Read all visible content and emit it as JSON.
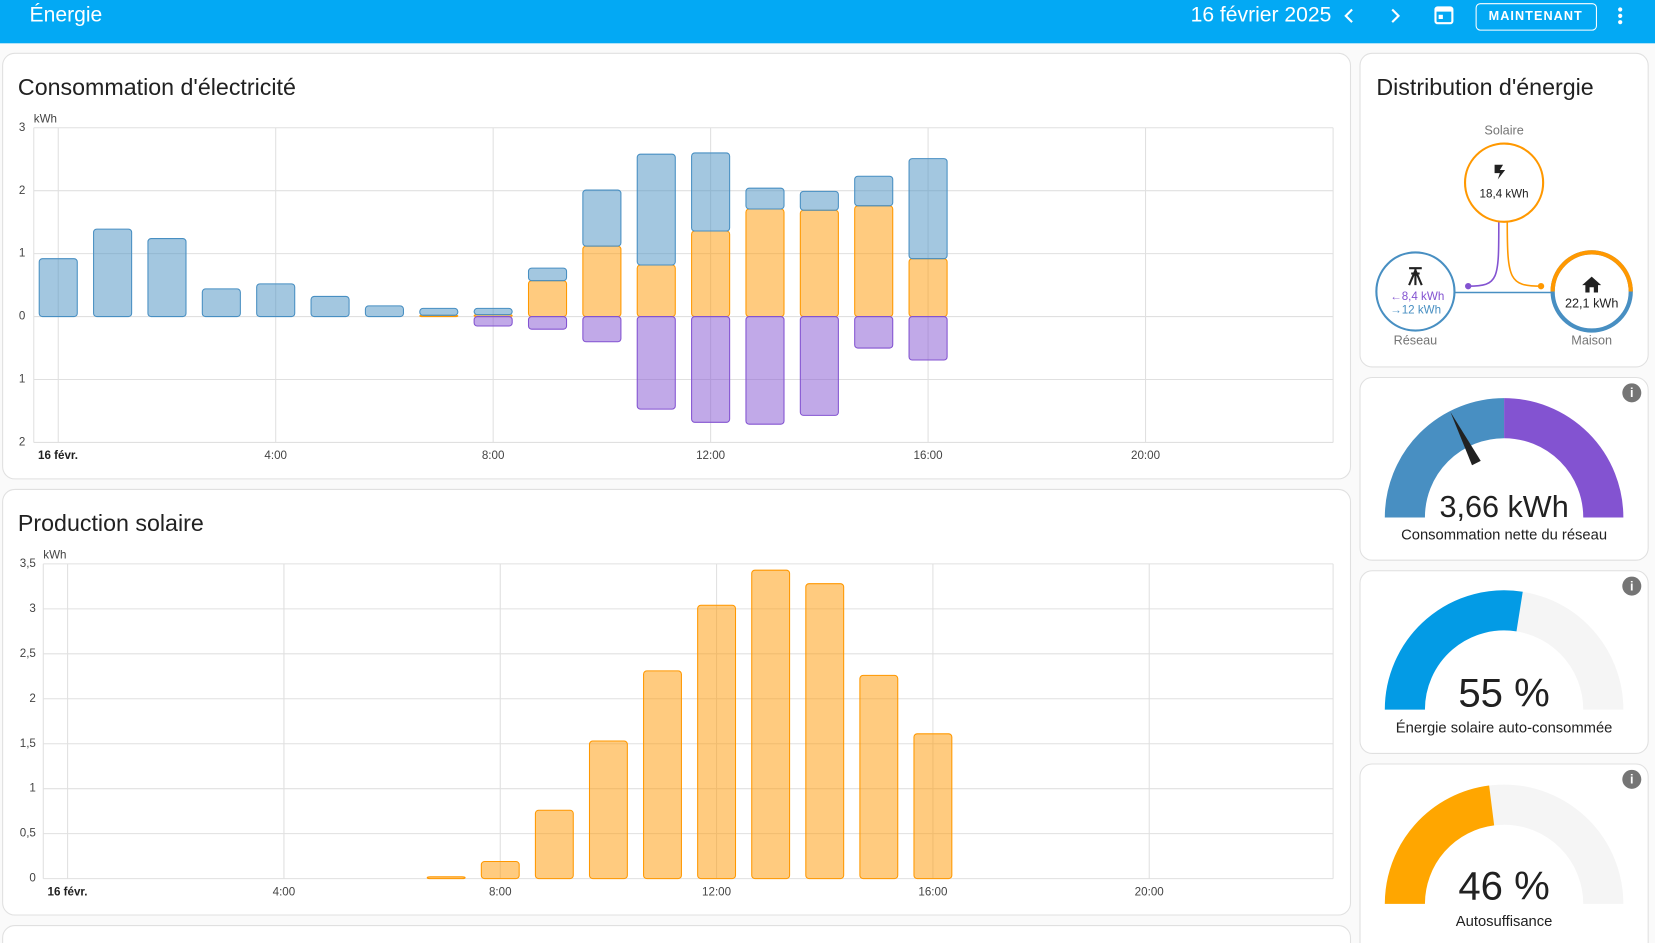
{
  "header": {
    "title": "Énergie",
    "date": "16 février 2025",
    "button": "MAINTENANT"
  },
  "consumption": {
    "type": "bar",
    "stacked": true,
    "grid": true,
    "title": "Consommation d'électricité",
    "unit": "kWh",
    "x": [
      0,
      1,
      2,
      3,
      4,
      5,
      6,
      7,
      8,
      9,
      10,
      11,
      12,
      13,
      14,
      15,
      16
    ],
    "xlim": [
      -0.45,
      23.45
    ],
    "xticks": [
      {
        "value": 0,
        "label": "16 févr."
      },
      {
        "value": 4,
        "label": "4:00"
      },
      {
        "value": 8,
        "label": "8:00"
      },
      {
        "value": 12,
        "label": "12:00"
      },
      {
        "value": 16,
        "label": "16:00"
      },
      {
        "value": 20,
        "label": "20:00"
      }
    ],
    "ylim": [
      -2,
      3
    ],
    "yticks": [
      {
        "value": -2,
        "label": "2"
      },
      {
        "value": -1,
        "label": "1"
      },
      0,
      1,
      2,
      3
    ],
    "series": [
      {
        "color": "#ff9800",
        "values": [
          0,
          0,
          0,
          0,
          0,
          0,
          0,
          0.02,
          0.03,
          0.57,
          1.12,
          0.82,
          1.36,
          1.71,
          1.69,
          1.76,
          0.92
        ]
      },
      {
        "color": "#488fc2",
        "values": [
          0.92,
          1.39,
          1.24,
          0.44,
          0.52,
          0.32,
          0.17,
          0.11,
          0.1,
          0.2,
          0.89,
          1.76,
          1.24,
          0.33,
          0.3,
          0.47,
          1.59
        ]
      },
      {
        "color": "#8353d1",
        "values": [
          0,
          0,
          0,
          0,
          0,
          0,
          0,
          0,
          -0.15,
          -0.2,
          -0.4,
          -1.47,
          -1.68,
          -1.71,
          -1.57,
          -0.5,
          -0.69
        ]
      }
    ]
  },
  "solar": {
    "type": "bar",
    "stacked": true,
    "grid": true,
    "title": "Production solaire",
    "unit": "kWh",
    "x": [
      7,
      8,
      9,
      10,
      11,
      12,
      13,
      14,
      15,
      16
    ],
    "xlim": [
      -0.45,
      23.4
    ],
    "xticks": [
      {
        "value": 0,
        "label": "16 févr."
      },
      {
        "value": 4,
        "label": "4:00"
      },
      {
        "value": 8,
        "label": "8:00"
      },
      {
        "value": 12,
        "label": "12:00"
      },
      {
        "value": 16,
        "label": "16:00"
      },
      {
        "value": 20,
        "label": "20:00"
      }
    ],
    "ylim": [
      0,
      3.5
    ],
    "yticks": [
      0,
      {
        "value": 0.5,
        "label": "0,5"
      },
      1,
      {
        "value": 1.5,
        "label": "1,5"
      },
      2,
      {
        "value": 2.5,
        "label": "2,5"
      },
      3,
      {
        "value": 3.5,
        "label": "3,5"
      }
    ],
    "series": [
      {
        "color": "#ff9800",
        "values": [
          0.02,
          0.19,
          0.76,
          1.53,
          2.31,
          3.04,
          3.43,
          3.28,
          2.26,
          1.61
        ]
      }
    ]
  },
  "distribution": {
    "title": "Distribution d'énergie",
    "solar": {
      "label": "Solaire",
      "value": "18,4 kWh"
    },
    "grid": {
      "label": "Réseau",
      "returned": "8,4 kWh",
      "consumed": "12 kWh"
    },
    "home": {
      "label": "Maison",
      "value": "22,1 kWh"
    }
  },
  "gauges": [
    {
      "title": "Consommation nette du réseau",
      "value": 3.66,
      "value_label": "3,66 kWh"
    },
    {
      "title": "Énergie solaire auto-consommée",
      "value": 55,
      "value_label": "55 %",
      "color": "#039be5"
    },
    {
      "title": "Autosuffisance",
      "value": 46,
      "value_label": "46 %",
      "color": "#ffa600"
    }
  ]
}
